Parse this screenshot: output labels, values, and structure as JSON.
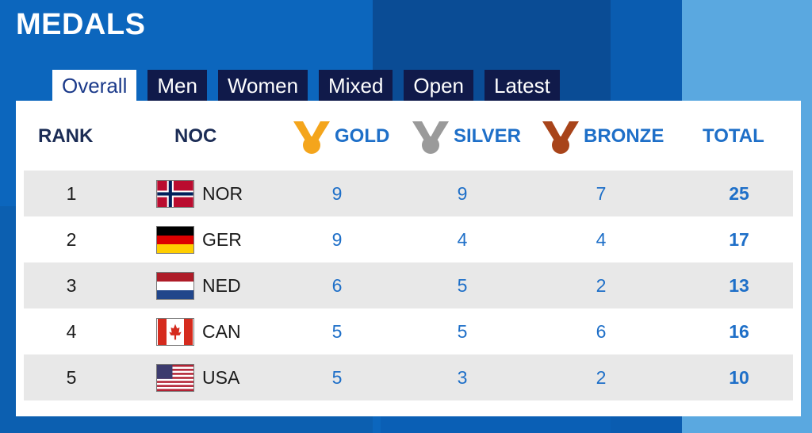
{
  "page": {
    "title": "MEDALS"
  },
  "tabs": [
    {
      "label": "Overall",
      "active": true
    },
    {
      "label": "Men"
    },
    {
      "label": "Women"
    },
    {
      "label": "Mixed"
    },
    {
      "label": "Open"
    },
    {
      "label": "Latest"
    }
  ],
  "table": {
    "headers": {
      "rank": "RANK",
      "noc": "NOC",
      "gold": "GOLD",
      "silver": "SILVER",
      "bronze": "BRONZE",
      "total": "TOTAL"
    },
    "medal_colors": {
      "gold": "#f4a51c",
      "silver": "#9a9a9a",
      "bronze": "#a8441a"
    },
    "rows": [
      {
        "rank": "1",
        "noc": "NOR",
        "flag": "norway-flag-icon",
        "gold": "9",
        "silver": "9",
        "bronze": "7",
        "total": "25"
      },
      {
        "rank": "2",
        "noc": "GER",
        "flag": "germany-flag-icon",
        "gold": "9",
        "silver": "4",
        "bronze": "4",
        "total": "17"
      },
      {
        "rank": "3",
        "noc": "NED",
        "flag": "netherlands-flag-icon",
        "gold": "6",
        "silver": "5",
        "bronze": "2",
        "total": "13"
      },
      {
        "rank": "4",
        "noc": "CAN",
        "flag": "canada-flag-icon",
        "gold": "5",
        "silver": "5",
        "bronze": "6",
        "total": "16"
      },
      {
        "rank": "5",
        "noc": "USA",
        "flag": "usa-flag-icon",
        "gold": "5",
        "silver": "3",
        "bronze": "2",
        "total": "10"
      }
    ]
  },
  "colors": {
    "header_text": "#1b2c55",
    "accent_blue": "#1e6fc8",
    "tab_bg": "#101a4a",
    "row_shade": "#e8e8e8"
  }
}
